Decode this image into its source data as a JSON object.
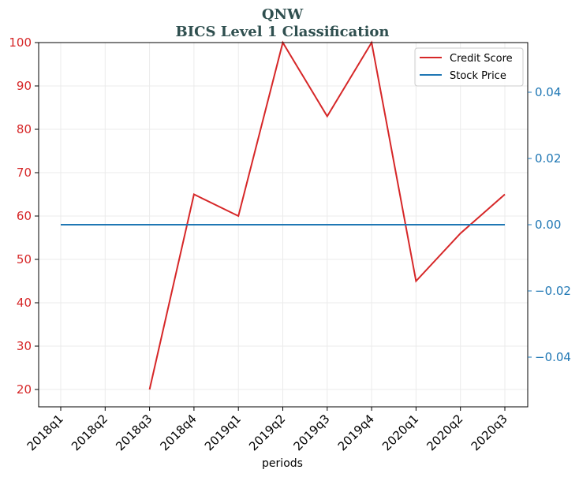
{
  "chart_data": {
    "type": "line",
    "title": "QNW",
    "subtitle": "BICS Level 1 Classification",
    "xlabel": "periods",
    "categories": [
      "2018q1",
      "2018q2",
      "2018q3",
      "2018q4",
      "2019q1",
      "2019q2",
      "2019q3",
      "2019q4",
      "2020q1",
      "2020q2",
      "2020q3"
    ],
    "series": [
      {
        "name": "Credit Score",
        "axis": "left",
        "color": "#d62728",
        "values": [
          null,
          null,
          20,
          65,
          60,
          100,
          83,
          100,
          45,
          56,
          65
        ]
      },
      {
        "name": "Stock Price",
        "axis": "right",
        "color": "#1f77b4",
        "values": [
          0,
          0,
          0,
          0,
          0,
          0,
          0,
          0,
          0,
          0,
          0
        ]
      }
    ],
    "y_left": {
      "ylim": [
        16,
        100
      ],
      "ticks": [
        20,
        30,
        40,
        50,
        60,
        70,
        80,
        90,
        100
      ],
      "tick_labels": [
        "20",
        "30",
        "40",
        "50",
        "60",
        "70",
        "80",
        "90",
        "100"
      ],
      "color": "#d62728"
    },
    "y_right": {
      "ylim": [
        -0.055,
        0.055
      ],
      "ticks": [
        -0.04,
        -0.02,
        0,
        0.02,
        0.04
      ],
      "tick_labels": [
        "−0.04",
        "−0.02",
        "0.00",
        "0.02",
        "0.04"
      ],
      "color": "#1f77b4"
    },
    "grid": true,
    "legend_position": "top-right"
  }
}
